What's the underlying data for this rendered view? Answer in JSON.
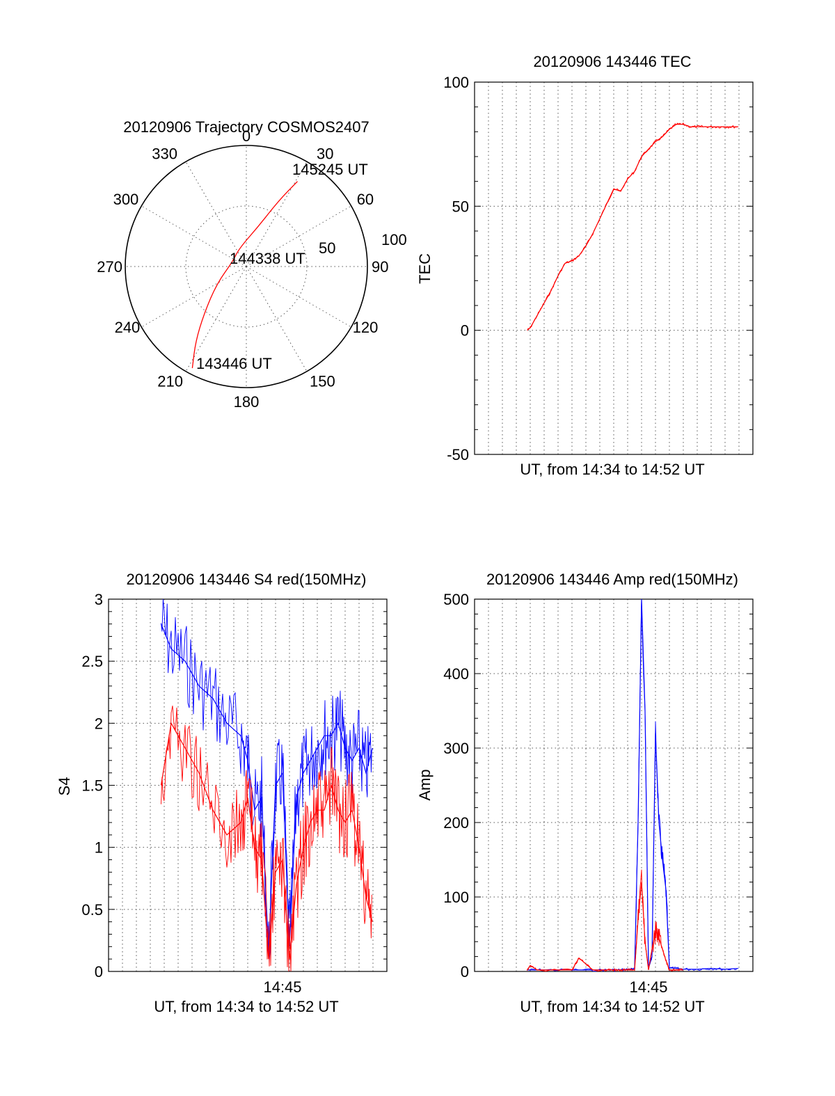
{
  "chart_data": [
    {
      "type": "polar",
      "title": "20120906 Trajectory COSMOS2407",
      "angle_labels": [
        "0",
        "30",
        "60",
        "90",
        "120",
        "150",
        "180",
        "210",
        "240",
        "270",
        "300",
        "330"
      ],
      "angle_values": [
        0,
        30,
        60,
        90,
        120,
        150,
        180,
        210,
        240,
        270,
        300,
        330
      ],
      "radial_labels": [
        "50",
        "100"
      ],
      "radial_values": [
        50,
        100
      ],
      "rlim": [
        0,
        100
      ],
      "track": {
        "color": "#ff0000",
        "points": [
          {
            "az": 208,
            "r": 95
          },
          {
            "az": 214,
            "r": 75
          },
          {
            "az": 222,
            "r": 52
          },
          {
            "az": 240,
            "r": 28
          },
          {
            "az": 290,
            "r": 12
          },
          {
            "az": 338,
            "r": 16
          },
          {
            "az": 17,
            "r": 35
          },
          {
            "az": 26,
            "r": 60
          },
          {
            "az": 31,
            "r": 82
          }
        ]
      },
      "annotations": [
        {
          "text": "145245 UT",
          "az": 31,
          "r": 82
        },
        {
          "text": "144338 UT",
          "az": 0,
          "r": 0
        },
        {
          "text": "143446 UT",
          "az": 208,
          "r": 95
        }
      ]
    },
    {
      "type": "line",
      "title": "20120906 143446 TEC",
      "xlabel": "UT, from 14:34 to 14:52 UT",
      "ylabel": "TEC",
      "ylim": [
        -50,
        100
      ],
      "yticks": [
        -50,
        0,
        50,
        100
      ],
      "xlim": [
        14.5,
        14.9
      ],
      "grid": true,
      "series": [
        {
          "color": "#ff0000",
          "x": [
            14.5755,
            14.58,
            14.59,
            14.6,
            14.61,
            14.62,
            14.63,
            14.64,
            14.65,
            14.66,
            14.67,
            14.68,
            14.69,
            14.7,
            14.71,
            14.72,
            14.73,
            14.74,
            14.75,
            14.76,
            14.77,
            14.78,
            14.79,
            14.8,
            14.81,
            14.82,
            14.83,
            14.84,
            14.85,
            14.86,
            14.87,
            14.8792
          ],
          "y": [
            0,
            1,
            6,
            11,
            16,
            22,
            27,
            28,
            30,
            34,
            39,
            45,
            51,
            57,
            56,
            61,
            64,
            70,
            73,
            76,
            78,
            81,
            83,
            83,
            82,
            82,
            82,
            82,
            82,
            82,
            82,
            82
          ]
        }
      ]
    },
    {
      "type": "line",
      "title": "20120906 143446 S4 red(150MHz)",
      "xlabel": "UT, from 14:34 to 14:52 UT",
      "ylabel": "S4",
      "ylim": [
        0,
        3
      ],
      "yticks": [
        0,
        0.5,
        1,
        1.5,
        2,
        2.5,
        3
      ],
      "ytick_labels": [
        "0",
        "0.5",
        "1",
        "1.5",
        "2",
        "2.5",
        "3"
      ],
      "xlim": [
        14.5,
        14.9
      ],
      "xtick": {
        "value": 14.75,
        "label": "14:45"
      },
      "grid": true,
      "series": [
        {
          "color": "#0000ff",
          "x": [
            14.5755,
            14.59,
            14.61,
            14.63,
            14.65,
            14.67,
            14.69,
            14.7,
            14.71,
            14.72,
            14.73,
            14.74,
            14.75,
            14.76,
            14.77,
            14.78,
            14.79,
            14.8,
            14.81,
            14.82,
            14.83,
            14.84,
            14.85,
            14.86,
            14.87,
            14.8792
          ],
          "y": [
            2.8,
            2.6,
            2.5,
            2.3,
            2.2,
            2.0,
            1.9,
            1.7,
            1.3,
            1.4,
            0.15,
            1.5,
            1.6,
            0.2,
            1.4,
            1.6,
            1.7,
            1.8,
            1.9,
            1.9,
            2.0,
            1.8,
            1.7,
            1.8,
            1.6,
            1.8
          ]
        },
        {
          "color": "#ff0000",
          "x": [
            14.5755,
            14.59,
            14.61,
            14.63,
            14.65,
            14.67,
            14.69,
            14.7,
            14.71,
            14.72,
            14.73,
            14.74,
            14.75,
            14.76,
            14.77,
            14.78,
            14.79,
            14.8,
            14.81,
            14.82,
            14.83,
            14.84,
            14.85,
            14.86,
            14.87,
            14.8792
          ],
          "y": [
            1.5,
            2.0,
            1.8,
            1.6,
            1.3,
            1.1,
            1.2,
            1.4,
            1.0,
            0.9,
            0.1,
            0.8,
            0.9,
            0.1,
            0.7,
            1.0,
            1.2,
            1.3,
            1.3,
            1.5,
            1.3,
            1.2,
            1.3,
            1.0,
            0.6,
            0.4
          ]
        }
      ]
    },
    {
      "type": "line",
      "title": "20120906 143446 Amp red(150MHz)",
      "xlabel": "UT, from 14:34 to 14:52 UT",
      "ylabel": "Amp",
      "ylim": [
        0,
        500
      ],
      "yticks": [
        0,
        100,
        200,
        300,
        400,
        500
      ],
      "xlim": [
        14.5,
        14.9
      ],
      "xtick": {
        "value": 14.75,
        "label": "14:45"
      },
      "grid": true,
      "series": [
        {
          "color": "#0000ff",
          "x": [
            14.5755,
            14.6,
            14.64,
            14.68,
            14.7,
            14.71,
            14.72,
            14.73,
            14.735,
            14.74,
            14.745,
            14.75,
            14.755,
            14.76,
            14.765,
            14.77,
            14.775,
            14.78,
            14.78,
            14.79,
            14.8,
            14.82,
            14.84,
            14.86,
            14.8792
          ],
          "y": [
            2,
            2,
            2,
            2,
            2,
            2,
            3,
            3,
            200,
            500,
            350,
            4,
            20,
            320,
            200,
            150,
            110,
            5,
            5,
            4,
            3,
            3,
            4,
            3,
            4
          ]
        },
        {
          "color": "#ff0000",
          "x": [
            14.5755,
            14.58,
            14.59,
            14.64,
            14.65,
            14.66,
            14.67,
            14.7,
            14.71,
            14.72,
            14.73,
            14.735,
            14.74,
            14.745,
            14.75,
            14.755,
            14.76,
            14.765,
            14.77,
            14.775,
            14.78,
            14.79,
            14.8
          ],
          "y": [
            2,
            8,
            2,
            2,
            18,
            10,
            2,
            2,
            2,
            2,
            2,
            70,
            120,
            40,
            2,
            30,
            55,
            45,
            30,
            15,
            2,
            2,
            2
          ]
        }
      ]
    }
  ]
}
